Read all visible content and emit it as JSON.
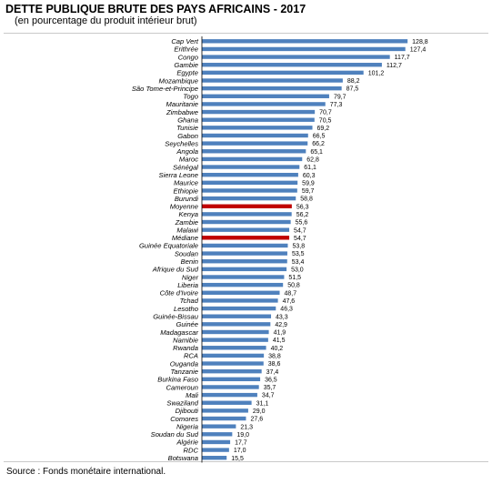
{
  "title": "DETTE PUBLIQUE BRUTE DES PAYS AFRICAINS  - 2017",
  "subtitle": "(en pourcentage du produit intérieur  brut)",
  "source": "Source : Fonds monétaire international.",
  "colors": {
    "bar": "#4F81BD",
    "highlight": "#C00000",
    "axis": "#000000"
  },
  "chart_data": {
    "type": "bar",
    "orientation": "horizontal",
    "categories": [
      "Cap Vert",
      "Erithrée",
      "Congo",
      "Gambie",
      "Egypte",
      "Mozambique",
      "São Tome-et-Principe",
      "Togo",
      "Mauritanie",
      "Zimbabwe",
      "Ghana",
      "Tunisie",
      "Gabon",
      "Seychelles",
      "Angola",
      "Maroc",
      "Sénégal",
      "Sierra Leone",
      "Maurice",
      "Ethiopie",
      "Burundi",
      "Moyenne",
      "Kenya",
      "Zambie",
      "Malawi",
      "Médiane",
      "Guinée Equatoriale",
      "Soudan",
      "Benin",
      "Afrique du Sud",
      "Niger",
      "Liberia",
      "Côte d'Ivoire",
      "Tchad",
      "Lesotho",
      "Guinée-Bissau",
      "Guinée",
      "Madagascar",
      "Namibie",
      "Rwanda",
      "RCA",
      "Ouganda",
      "Tanzanie",
      "Burkina Faso",
      "Cameroun",
      "Mali",
      "Swaziland",
      "Djibouti",
      "Comores",
      "Nigeria",
      "Soudan du Sud",
      "Algérie",
      "RDC",
      "Botswana"
    ],
    "values": [
      128.8,
      127.4,
      117.7,
      112.7,
      101.2,
      88.2,
      87.5,
      79.7,
      77.3,
      70.7,
      70.5,
      69.2,
      66.5,
      66.2,
      65.1,
      62.8,
      61.1,
      60.3,
      59.9,
      59.7,
      58.8,
      56.3,
      56.2,
      55.6,
      54.7,
      54.7,
      53.8,
      53.5,
      53.4,
      53.0,
      51.5,
      50.8,
      48.7,
      47.6,
      46.3,
      43.3,
      42.9,
      41.9,
      41.5,
      40.2,
      38.8,
      38.6,
      37.4,
      36.5,
      35.7,
      34.7,
      31.1,
      29.0,
      27.6,
      21.3,
      19.0,
      17.7,
      17.0,
      15.5
    ],
    "value_labels": [
      "128,8",
      "127,4",
      "117,7",
      "112,7",
      "101,2",
      "88,2",
      "87,5",
      "79,7",
      "77,3",
      "70,7",
      "70,5",
      "69,2",
      "66,5",
      "66,2",
      "65,1",
      "62,8",
      "61,1",
      "60,3",
      "59,9",
      "59,7",
      "58,8",
      "56,3",
      "56,2",
      "55,6",
      "54,7",
      "54,7",
      "53,8",
      "53,5",
      "53,4",
      "53,0",
      "51,5",
      "50,8",
      "48,7",
      "47,6",
      "46,3",
      "43,3",
      "42,9",
      "41,9",
      "41,5",
      "40,2",
      "38,8",
      "38,6",
      "37,4",
      "36,5",
      "35,7",
      "34,7",
      "31,1",
      "29,0",
      "27,6",
      "21,3",
      "19,0",
      "17,7",
      "17,0",
      "15,5"
    ],
    "highlighted": [
      "Moyenne",
      "Médiane"
    ],
    "xlim": [
      0,
      130
    ],
    "grid": false,
    "legend": "none"
  }
}
